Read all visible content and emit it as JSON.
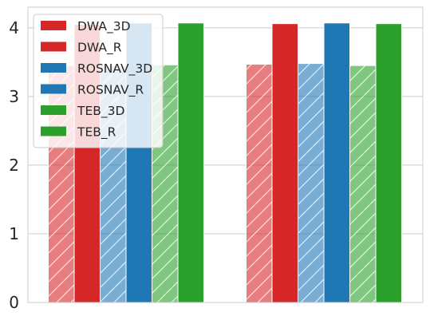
{
  "chart_data": {
    "type": "bar",
    "title": "",
    "xlabel": "",
    "ylabel": "",
    "categories": [
      "",
      ""
    ],
    "ylim": [
      0,
      4.3
    ],
    "yticks": [
      0,
      1,
      2,
      3,
      4
    ],
    "ytick_labels": [
      "0",
      "1",
      "2",
      "3",
      "4"
    ],
    "grid": "horizontal",
    "legend_position": "top-left",
    "series": [
      {
        "name": "DWA_3D",
        "color": "#d62728",
        "hatched": true,
        "values": [
          3.45,
          3.47
        ]
      },
      {
        "name": "DWA_R",
        "color": "#d62728",
        "hatched": false,
        "values": [
          4.05,
          4.06
        ]
      },
      {
        "name": "ROSNAV_3D",
        "color": "#1f77b4",
        "hatched": true,
        "values": [
          3.45,
          3.48
        ]
      },
      {
        "name": "ROSNAV_R",
        "color": "#1f77b4",
        "hatched": false,
        "values": [
          4.07,
          4.07
        ]
      },
      {
        "name": "TEB_3D",
        "color": "#2ca02c",
        "hatched": true,
        "values": [
          3.46,
          3.45
        ]
      },
      {
        "name": "TEB_R",
        "color": "#2ca02c",
        "hatched": false,
        "values": [
          4.07,
          4.06
        ]
      }
    ]
  }
}
